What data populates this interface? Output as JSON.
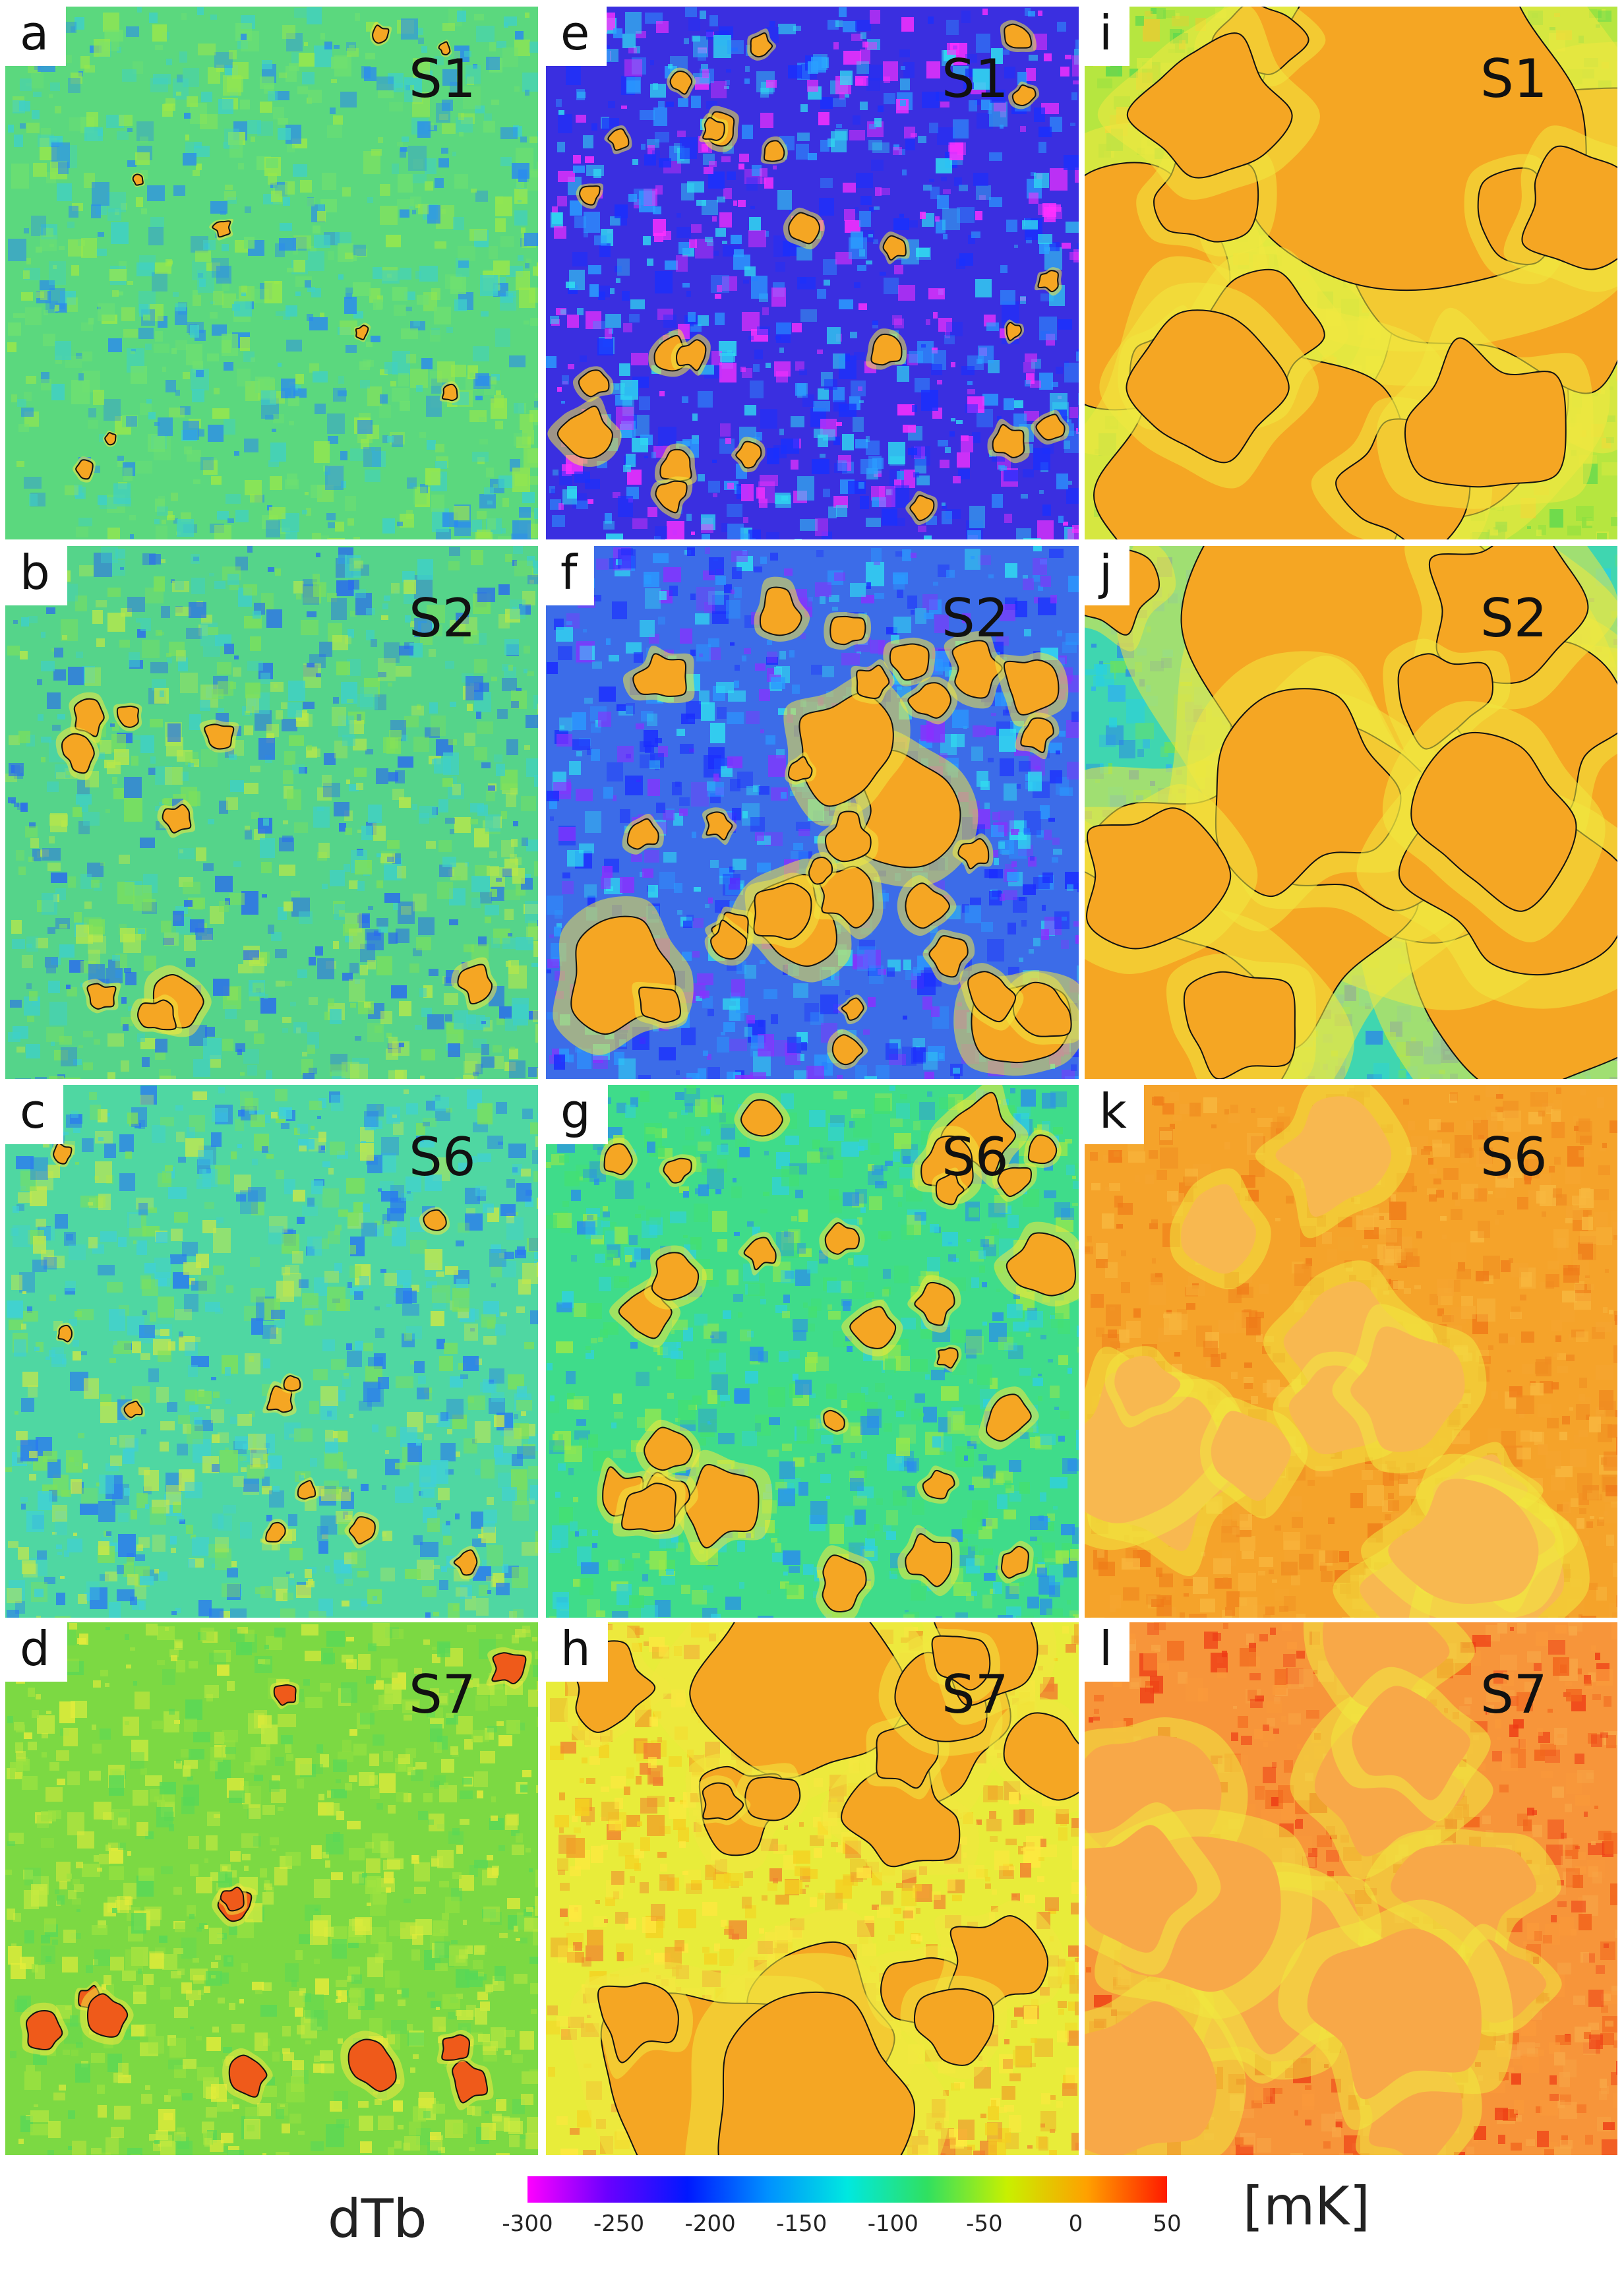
{
  "panels": [
    {
      "letter": "a",
      "series": "S1",
      "base": "#5bd87e",
      "col": 0,
      "row": 0
    },
    {
      "letter": "b",
      "series": "S2",
      "base": "#55d48a",
      "col": 0,
      "row": 1
    },
    {
      "letter": "c",
      "series": "S6",
      "base": "#4fd7a2",
      "col": 0,
      "row": 2
    },
    {
      "letter": "d",
      "series": "S7",
      "base": "#7cd943",
      "col": 0,
      "row": 3
    },
    {
      "letter": "e",
      "series": "S1",
      "base": "#3a2fe0",
      "col": 1,
      "row": 0
    },
    {
      "letter": "f",
      "series": "S2",
      "base": "#3c6ce8",
      "col": 1,
      "row": 1
    },
    {
      "letter": "g",
      "series": "S6",
      "base": "#3fdc8a",
      "col": 1,
      "row": 2
    },
    {
      "letter": "h",
      "series": "S7",
      "base": "#e8ec3a",
      "col": 1,
      "row": 3
    },
    {
      "letter": "i",
      "series": "S1",
      "base": "#b6e640",
      "col": 2,
      "row": 0
    },
    {
      "letter": "j",
      "series": "S2",
      "base": "#3fd6b0",
      "col": 2,
      "row": 1
    },
    {
      "letter": "k",
      "series": "S6",
      "base": "#f5a32a",
      "col": 2,
      "row": 2
    },
    {
      "letter": "l",
      "series": "S7",
      "base": "#f7953a",
      "col": 2,
      "row": 3
    }
  ],
  "colorbar": {
    "label": "dTb",
    "unit": "[mK]",
    "ticks": [
      "-300",
      "-250",
      "-200",
      "-150",
      "-100",
      "-50",
      "0",
      "50"
    ],
    "range": [
      -300,
      50
    ],
    "stops": [
      "#ff00ff",
      "#6a00ff",
      "#0018ff",
      "#0090ff",
      "#00e8e0",
      "#30e060",
      "#c8f000",
      "#ffa000",
      "#ff1a00"
    ]
  },
  "colors": {
    "region_fill": "#f5a623",
    "contour": "#111111",
    "background": "#ffffff"
  }
}
